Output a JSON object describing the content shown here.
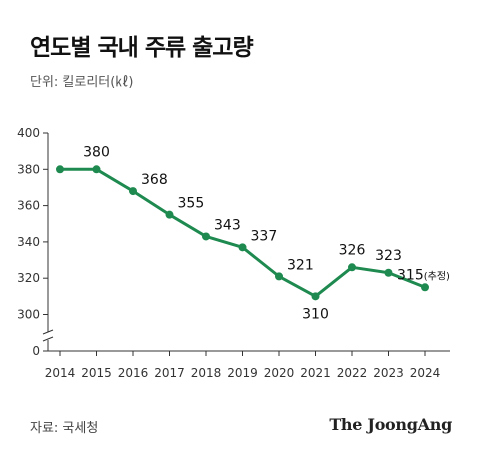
{
  "header": {
    "title": "연도별 국내 주류 출고량",
    "unit": "단위: 킬로리터(㎘)"
  },
  "footer": {
    "source": "자료: 국세청",
    "logo": "The JoongAng"
  },
  "colors": {
    "line": "#1e8a4f",
    "axis": "#333333",
    "grid": "#d8d8d8"
  },
  "chart_data": {
    "type": "line",
    "title": "연도별 국내 주류 출고량",
    "xlabel": "",
    "ylabel": "",
    "ylim": [
      0,
      400
    ],
    "yaxis_break": true,
    "yticks": [
      0,
      300,
      320,
      340,
      360,
      380,
      400
    ],
    "grid": false,
    "categories": [
      "2014",
      "2015",
      "2016",
      "2017",
      "2018",
      "2019",
      "2020",
      "2021",
      "2022",
      "2023",
      "2024"
    ],
    "series": [
      {
        "values": [
          380,
          380,
          368,
          355,
          343,
          337,
          321,
          310,
          326,
          323,
          315
        ]
      }
    ],
    "data_labels": [
      "",
      "380",
      "368",
      "355",
      "343",
      "337",
      "321",
      "310",
      "326",
      "323",
      "315"
    ],
    "annotations": [
      {
        "category": "2024",
        "text": "(추정)"
      }
    ]
  }
}
